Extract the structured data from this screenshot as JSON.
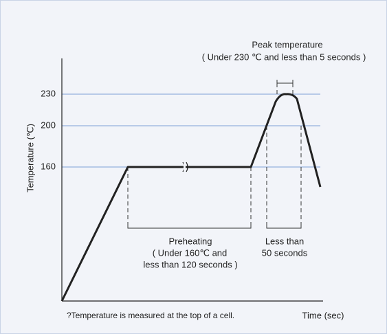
{
  "diagram": {
    "axis_y_label": "Temperature (℃)",
    "axis_x_label": "Time (sec)",
    "y_ticks": [
      230,
      200,
      160
    ],
    "peak": {
      "title": "Peak temperature",
      "note": "( Under 230 ℃ and less than 5 seconds )"
    },
    "preheating": [
      "Preheating",
      "( Under 160℃ and",
      "less than 120 seconds )"
    ],
    "reflow": [
      "Less than",
      "50 seconds"
    ],
    "footnote": "?Temperature is measured at the top of a cell."
  }
}
